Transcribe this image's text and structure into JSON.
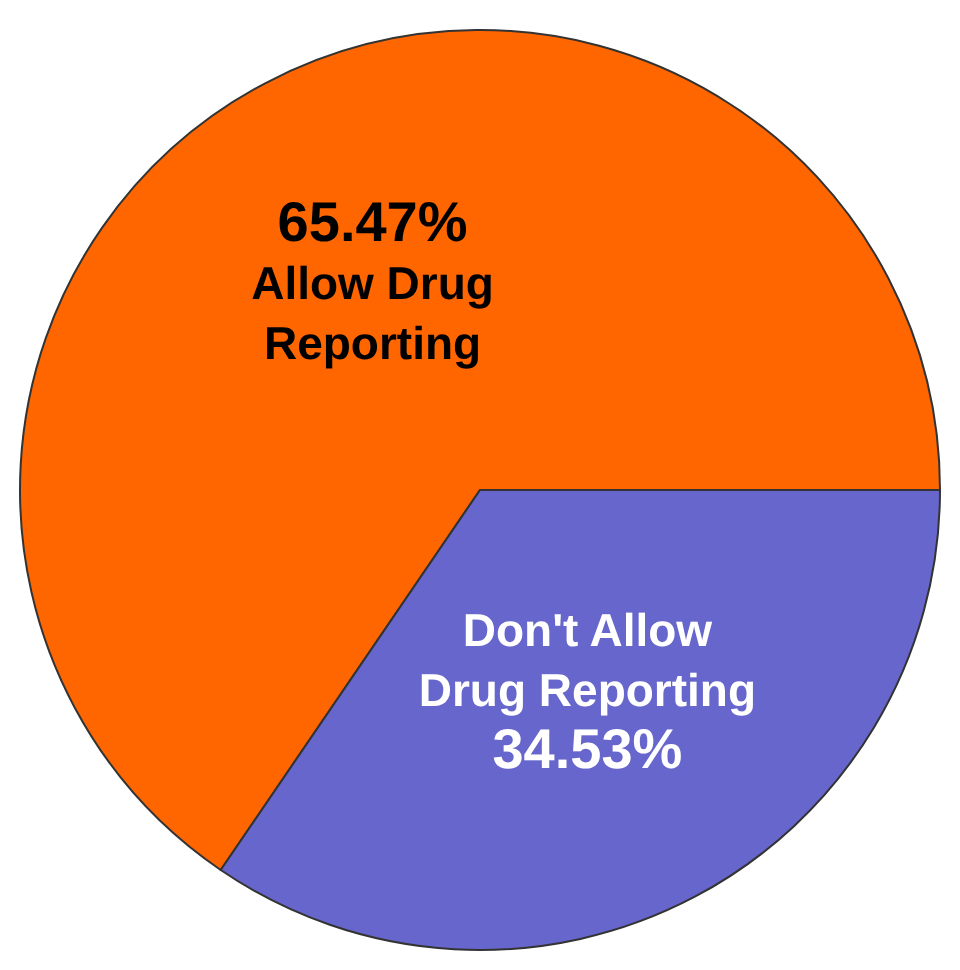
{
  "chart_data": {
    "type": "pie",
    "categories": [
      "Allow Drug Reporting",
      "Don't Allow Drug Reporting"
    ],
    "values": [
      65.47,
      34.53
    ],
    "colors": [
      "#ff6600",
      "#6666cc"
    ],
    "value_labels": [
      "65.47%",
      "34.53%"
    ]
  }
}
